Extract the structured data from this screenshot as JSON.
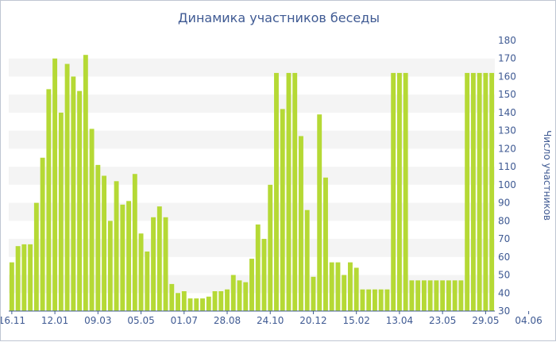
{
  "chart_data": {
    "type": "bar",
    "title": "Динамика участников беседы",
    "xlabel": "",
    "ylabel": "Число участников",
    "ylim": [
      30,
      180
    ],
    "yticks": [
      30,
      40,
      50,
      60,
      70,
      80,
      90,
      100,
      110,
      120,
      130,
      140,
      150,
      160,
      170,
      180
    ],
    "grid": "horizontal alternating bands",
    "bar_color": "#b5d935",
    "band_color": "#f4f4f4",
    "text_color": "#3f5a93",
    "x_tick_labels": [
      {
        "label": "16.11",
        "index": 0
      },
      {
        "label": "12.01",
        "index": 7
      },
      {
        "label": "09.03",
        "index": 14
      },
      {
        "label": "05.05",
        "index": 21
      },
      {
        "label": "01.07",
        "index": 28
      },
      {
        "label": "28.08",
        "index": 35
      },
      {
        "label": "24.10",
        "index": 42
      },
      {
        "label": "20.12",
        "index": 49
      },
      {
        "label": "15.02",
        "index": 56
      },
      {
        "label": "13.04",
        "index": 63
      },
      {
        "label": "23.05",
        "index": 70
      },
      {
        "label": "29.05",
        "index": 77
      },
      {
        "label": "04.06",
        "index": 84
      }
    ],
    "values": [
      57,
      66,
      67,
      67,
      90,
      115,
      153,
      170,
      140,
      167,
      160,
      152,
      172,
      131,
      111,
      105,
      80,
      102,
      89,
      91,
      106,
      73,
      63,
      82,
      88,
      82,
      45,
      40,
      41,
      37,
      37,
      37,
      38,
      41,
      41,
      42,
      50,
      47,
      46,
      59,
      78,
      70,
      100,
      162,
      142,
      162,
      162,
      127,
      86,
      49,
      139,
      104,
      57,
      57,
      50,
      57,
      54,
      42,
      42,
      42,
      42,
      42,
      162,
      162,
      162,
      47,
      47,
      47,
      47,
      47,
      47,
      47,
      47,
      47,
      162,
      162,
      162,
      162,
      162
    ]
  }
}
